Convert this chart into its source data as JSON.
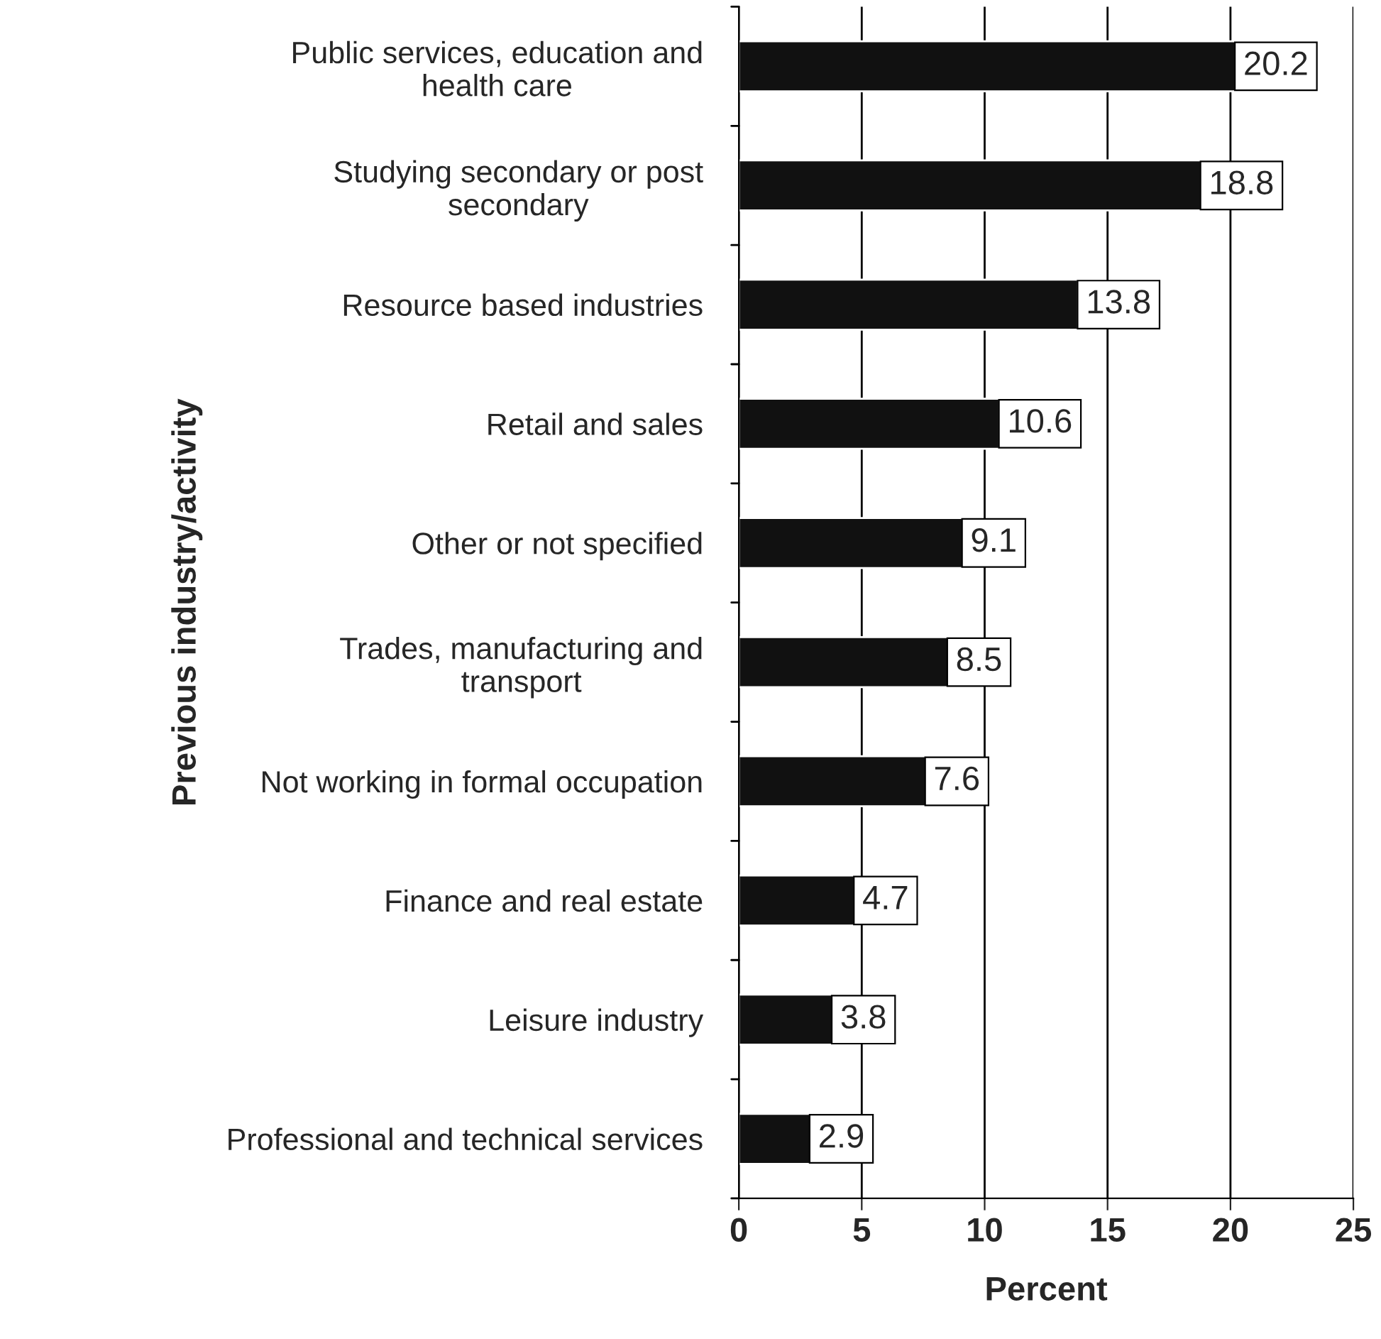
{
  "chart_data": {
    "type": "bar",
    "orientation": "horizontal",
    "xlabel": "Percent",
    "ylabel": "Previous industry/activity",
    "categories": [
      "Public services, education and\nhealth care",
      "Studying secondary or post\nsecondary",
      "Resource based industries",
      "Retail and sales",
      "Other or not specified",
      "Trades, manufacturing and\ntransport",
      "Not working in formal occupation",
      "Finance and real estate",
      "Leisure industry",
      "Professional and technical services"
    ],
    "values": [
      20.2,
      18.8,
      13.8,
      10.6,
      9.1,
      8.5,
      7.6,
      4.7,
      3.8,
      2.9
    ],
    "color": "#111111",
    "xlim": [
      0,
      25
    ],
    "xticks": [
      0,
      5,
      10,
      15,
      20,
      25
    ],
    "grid": "x",
    "data_labels": true
  }
}
